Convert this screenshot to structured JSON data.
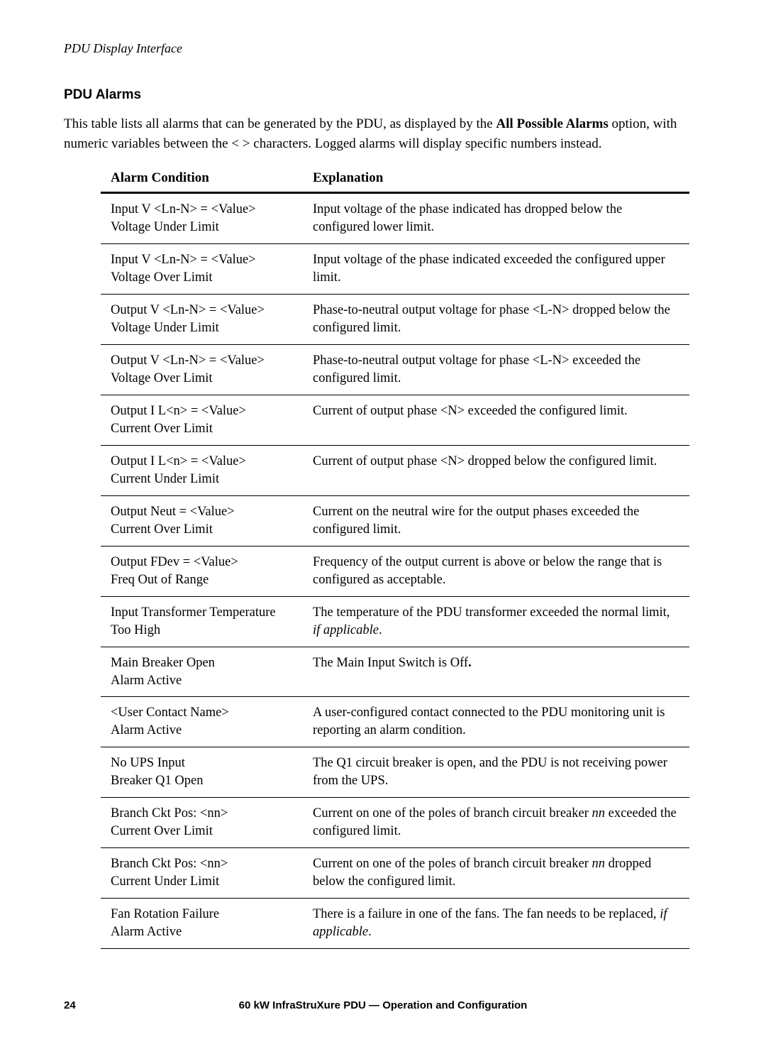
{
  "header": "PDU Display Interface",
  "sectionTitle": "PDU Alarms",
  "intro": {
    "part1": "This table lists all alarms that can be generated by the PDU, as displayed by the ",
    "bold": "All Possible Alarms",
    "part2": " option, with numeric variables between the < > characters. Logged alarms will display specific numbers instead."
  },
  "table": {
    "headers": {
      "col1": "Alarm Condition",
      "col2": "Explanation"
    },
    "rows": [
      {
        "c1a": "Input V <Ln-N> = <Value>",
        "c1b": "Voltage Under Limit",
        "c2": "Input voltage of the phase indicated has dropped below the configured lower limit."
      },
      {
        "c1a": "Input V <Ln-N> = <Value>",
        "c1b": "Voltage Over Limit",
        "c2": "Input voltage of the phase indicated exceeded the configured upper limit."
      },
      {
        "c1a": "Output V <Ln-N> = <Value>",
        "c1b": "Voltage Under Limit",
        "c2": "Phase-to-neutral output voltage for phase <L-N> dropped below the configured limit."
      },
      {
        "c1a": "Output V <Ln-N> = <Value>",
        "c1b": "Voltage Over Limit",
        "c2": "Phase-to-neutral output voltage for phase <L-N> exceeded the configured limit."
      },
      {
        "c1a": "Output I L<n> = <Value>",
        "c1b": "Current Over Limit",
        "c2": "Current of output phase <N> exceeded the configured limit."
      },
      {
        "c1a": "Output I L<n> = <Value>",
        "c1b": "Current Under Limit",
        "c2": "Current of output phase <N> dropped below the configured limit."
      },
      {
        "c1a": "Output Neut = <Value>",
        "c1b": "Current Over Limit",
        "c2": "Current on the neutral wire for the output phases exceeded the configured limit."
      },
      {
        "c1a": "Output FDev = <Value>",
        "c1b": "Freq Out of Range",
        "c2": "Frequency of the output current is above or below the range that is configured as acceptable."
      },
      {
        "c1a": "Input Transformer Temperature",
        "c1b": "Too High",
        "c2a": "The temperature of the PDU transformer exceeded the normal limit, ",
        "c2it": "if applicable",
        "c2b": "."
      },
      {
        "c1a": "Main Breaker Open",
        "c1b": "Alarm Active",
        "c2a": "The Main Input Switch is Off",
        "c2bold": ".",
        "c2b": ""
      },
      {
        "c1a": "<User Contact Name>",
        "c1b": "Alarm Active",
        "c2": "A user-configured contact connected to the PDU monitoring unit is reporting an alarm condition."
      },
      {
        "c1a": "No UPS Input",
        "c1b": "Breaker Q1 Open",
        "c2": "The Q1 circuit breaker is open, and the PDU is not receiving power from the UPS."
      },
      {
        "c1a": "Branch Ckt Pos: <nn>",
        "c1b": "Current Over Limit",
        "c2a": "Current on one of the poles of branch circuit breaker ",
        "c2it": "nn",
        "c2b": " exceeded the configured limit."
      },
      {
        "c1a": "Branch Ckt Pos: <nn>",
        "c1b": "Current Under Limit",
        "c2a": "Current on one of the poles of branch circuit breaker ",
        "c2it": "nn",
        "c2b": " dropped below the configured limit."
      },
      {
        "c1a": "Fan Rotation Failure",
        "c1b": "Alarm Active",
        "c2a": "There is a failure in one of the fans. The fan needs to be replaced, ",
        "c2it": "if applicable",
        "c2b": "."
      }
    ]
  },
  "footer": {
    "page": "24",
    "title": "60 kW InfraStruXure  PDU — Operation and Configuration"
  }
}
